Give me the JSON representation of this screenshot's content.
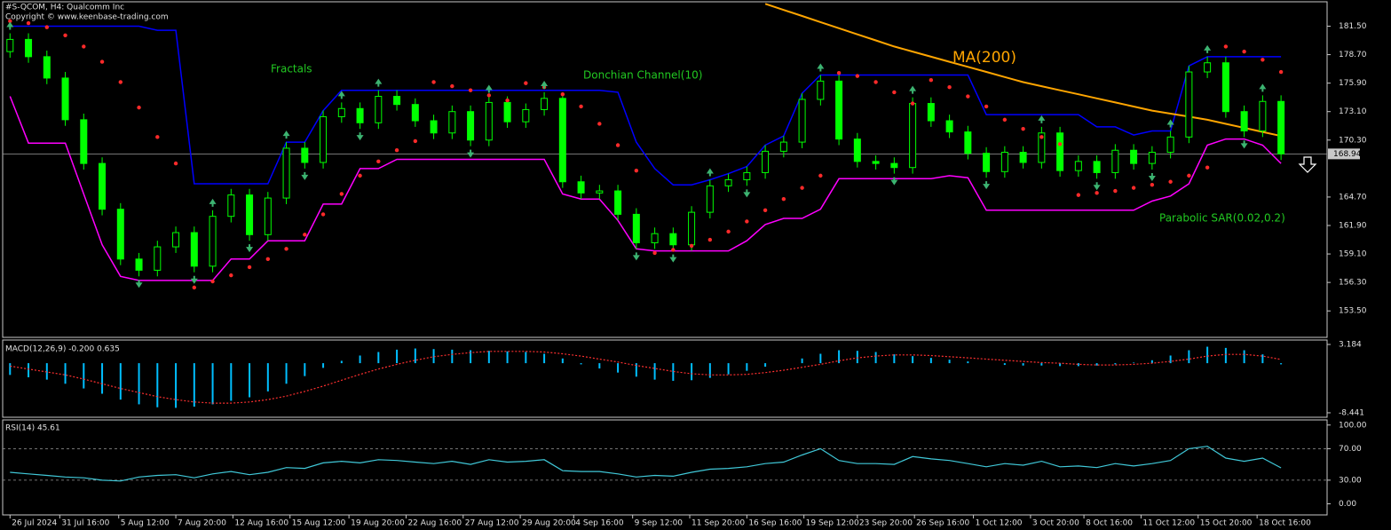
{
  "chart_data": [
    {
      "type": "candlestick",
      "title": "#S-QCOM, H4:  Qualcomm Inc",
      "subtitle": "Copyright © www.keenbase-trading.com",
      "ylim": [
        150.9,
        183.9
      ],
      "yticks": [
        {
          "value": 181.5,
          "label": "181.50"
        },
        {
          "value": 178.7,
          "label": "178.70"
        },
        {
          "value": 175.9,
          "label": "175.90"
        },
        {
          "value": 173.1,
          "label": "173.10"
        },
        {
          "value": 170.3,
          "label": "170.30"
        },
        {
          "value": 164.7,
          "label": "164.70"
        },
        {
          "value": 161.9,
          "label": "161.90"
        },
        {
          "value": 159.1,
          "label": "159.10"
        },
        {
          "value": 156.3,
          "label": "156.30"
        },
        {
          "value": 153.5,
          "label": "153.50"
        }
      ],
      "last_price": 168.94,
      "candle_color": "#00ff00",
      "open": [
        179.0,
        180.2,
        178.5,
        176.4,
        172.3,
        168.0,
        163.5,
        158.6,
        157.5,
        159.8,
        161.2,
        157.9,
        162.8,
        164.9,
        161.0,
        164.6,
        169.5,
        168.1,
        172.6,
        173.4,
        172.0,
        174.6,
        173.8,
        172.2,
        171.0,
        173.1,
        170.3,
        174.0,
        172.1,
        173.3,
        174.4,
        166.2,
        165.1,
        165.3,
        163.0,
        160.2,
        161.1,
        160.0,
        163.2,
        165.8,
        166.4,
        167.1,
        169.2,
        170.1,
        174.3,
        176.1,
        170.4,
        168.2,
        168.0,
        167.6,
        173.9,
        172.2,
        171.1,
        169.0,
        167.2,
        169.1,
        168.1,
        171.0,
        167.3,
        168.2,
        167.1,
        169.3,
        168.0,
        169.1,
        170.6,
        177.0,
        177.9,
        173.1,
        171.2,
        174.1
      ],
      "high": [
        180.8,
        180.8,
        179.1,
        177.0,
        172.9,
        168.6,
        164.1,
        159.2,
        160.4,
        161.8,
        161.8,
        163.4,
        165.5,
        165.5,
        165.2,
        170.1,
        170.1,
        173.2,
        174.0,
        174.0,
        175.2,
        175.2,
        174.4,
        172.8,
        173.7,
        173.7,
        174.6,
        174.6,
        173.9,
        175.0,
        175.0,
        166.8,
        165.9,
        165.9,
        163.6,
        161.7,
        161.7,
        163.8,
        166.4,
        167.0,
        167.7,
        169.8,
        170.7,
        174.9,
        176.7,
        176.7,
        171.0,
        168.8,
        168.6,
        174.5,
        174.5,
        172.8,
        171.7,
        169.6,
        169.7,
        169.7,
        171.6,
        171.6,
        168.8,
        168.8,
        169.9,
        169.9,
        169.7,
        171.2,
        177.6,
        178.5,
        178.5,
        173.7,
        174.7,
        174.7
      ],
      "low": [
        178.4,
        177.9,
        175.8,
        171.7,
        167.4,
        162.9,
        158.0,
        156.9,
        156.9,
        159.2,
        157.3,
        157.3,
        162.2,
        160.4,
        160.4,
        164.0,
        167.5,
        167.5,
        172.0,
        171.4,
        171.4,
        173.2,
        171.6,
        170.4,
        170.4,
        169.7,
        169.7,
        171.5,
        171.5,
        172.7,
        165.6,
        164.5,
        164.5,
        162.4,
        159.6,
        159.6,
        159.4,
        159.4,
        162.6,
        165.2,
        165.8,
        166.5,
        168.6,
        169.5,
        173.7,
        169.8,
        167.6,
        167.4,
        167.0,
        167.0,
        171.6,
        170.5,
        168.4,
        166.6,
        166.6,
        167.5,
        167.5,
        166.7,
        166.7,
        166.5,
        166.5,
        167.4,
        167.4,
        168.5,
        170.0,
        176.4,
        172.5,
        170.6,
        170.6,
        168.34
      ],
      "close": [
        180.2,
        178.5,
        176.4,
        172.3,
        168.0,
        163.5,
        158.6,
        157.5,
        159.8,
        161.2,
        157.9,
        162.8,
        164.9,
        161.0,
        164.6,
        169.5,
        168.1,
        172.6,
        173.4,
        172.0,
        174.6,
        173.8,
        172.2,
        171.0,
        173.1,
        170.3,
        174.0,
        172.1,
        173.3,
        174.4,
        166.2,
        165.1,
        165.3,
        163.0,
        160.2,
        161.1,
        160.0,
        163.2,
        165.8,
        166.4,
        167.1,
        169.2,
        170.1,
        174.3,
        176.1,
        170.4,
        168.2,
        168.0,
        167.6,
        173.9,
        172.2,
        171.1,
        169.0,
        167.2,
        169.1,
        168.1,
        171.0,
        167.3,
        168.2,
        167.1,
        169.3,
        168.0,
        169.1,
        170.6,
        177.0,
        177.9,
        173.1,
        171.2,
        174.1,
        168.94
      ],
      "ma": {
        "name": "MA(200)",
        "color": "#ffa500",
        "values": [
          null,
          null,
          null,
          null,
          null,
          null,
          null,
          null,
          null,
          null,
          null,
          null,
          null,
          null,
          null,
          null,
          null,
          null,
          null,
          null,
          null,
          null,
          null,
          null,
          null,
          null,
          null,
          null,
          null,
          null,
          null,
          null,
          null,
          null,
          null,
          null,
          null,
          null,
          null,
          null,
          null,
          183.7,
          183.1,
          182.5,
          181.9,
          181.3,
          180.7,
          180.1,
          179.5,
          179.0,
          178.5,
          178.0,
          177.5,
          177.0,
          176.5,
          176.0,
          175.6,
          175.2,
          174.8,
          174.4,
          174.0,
          173.6,
          173.2,
          172.9,
          172.6,
          172.3,
          171.9,
          171.5,
          171.1,
          170.7
        ]
      },
      "donchian": {
        "name": "Donchian Channel(10)",
        "upper": {
          "color": "#0000ff",
          "values": [
            181.5,
            181.5,
            181.5,
            181.5,
            181.5,
            181.5,
            181.5,
            181.5,
            181.1,
            181.1,
            166.0,
            166.0,
            166.0,
            166.0,
            166.0,
            170.1,
            170.1,
            173.2,
            175.2,
            175.2,
            175.2,
            175.2,
            175.2,
            175.2,
            175.2,
            175.2,
            175.2,
            175.2,
            175.2,
            175.2,
            175.2,
            175.2,
            175.2,
            175.0,
            170.1,
            167.5,
            165.9,
            165.9,
            166.4,
            167.0,
            167.7,
            169.8,
            170.7,
            174.9,
            176.7,
            176.7,
            176.7,
            176.7,
            176.7,
            176.7,
            176.7,
            176.7,
            176.7,
            172.8,
            172.8,
            172.8,
            172.8,
            172.8,
            172.8,
            171.6,
            171.6,
            170.8,
            171.2,
            171.2,
            177.6,
            178.5,
            178.5,
            178.5,
            178.5,
            178.5
          ]
        },
        "lower": {
          "color": "#ff00ff",
          "values": [
            174.6,
            170.0,
            170.0,
            170.0,
            165.0,
            160.0,
            156.9,
            156.5,
            156.5,
            156.5,
            156.5,
            156.5,
            158.6,
            158.6,
            160.4,
            160.4,
            160.4,
            164.0,
            164.0,
            167.5,
            167.5,
            168.4,
            168.4,
            168.4,
            168.4,
            168.4,
            168.4,
            168.4,
            168.4,
            168.4,
            165.0,
            164.5,
            164.5,
            162.4,
            159.6,
            159.4,
            159.4,
            159.4,
            159.4,
            159.4,
            160.4,
            162.0,
            162.6,
            162.6,
            163.5,
            166.5,
            166.5,
            166.5,
            166.5,
            166.5,
            166.5,
            166.8,
            166.6,
            163.4,
            163.4,
            163.4,
            163.4,
            163.4,
            163.4,
            163.4,
            163.4,
            163.4,
            164.3,
            164.8,
            166.0,
            169.8,
            170.4,
            170.4,
            169.8,
            168.0
          ]
        }
      },
      "sar": {
        "name": "Parabolic SAR(0.02,0.2)",
        "color": "#ff2a2a",
        "values": [
          182.0,
          181.8,
          181.4,
          180.6,
          179.5,
          178.0,
          176.0,
          173.5,
          170.6,
          168.0,
          155.8,
          156.4,
          157.0,
          157.8,
          158.6,
          159.6,
          161.0,
          163.0,
          165.0,
          166.8,
          168.2,
          169.3,
          170.2,
          176.0,
          175.6,
          175.2,
          174.7,
          174.2,
          175.9,
          175.5,
          174.8,
          173.6,
          171.9,
          169.8,
          167.3,
          159.2,
          159.5,
          159.9,
          160.5,
          161.3,
          162.3,
          163.4,
          164.5,
          165.6,
          166.8,
          176.9,
          176.6,
          176.0,
          175.0,
          173.9,
          176.2,
          175.5,
          174.6,
          173.6,
          172.3,
          171.4,
          170.6,
          169.9,
          164.9,
          165.1,
          165.3,
          165.6,
          165.9,
          166.2,
          166.8,
          167.6,
          179.5,
          179.0,
          178.2,
          177.0
        ]
      },
      "fractals": {
        "name": "Fractals",
        "color": "#3cb371",
        "up": [
          180.8,
          null,
          null,
          null,
          null,
          null,
          null,
          null,
          null,
          null,
          null,
          163.4,
          null,
          null,
          null,
          170.1,
          null,
          null,
          174.0,
          null,
          175.2,
          null,
          null,
          null,
          null,
          null,
          174.6,
          null,
          null,
          175.0,
          null,
          null,
          null,
          null,
          null,
          null,
          null,
          null,
          166.4,
          null,
          null,
          null,
          null,
          null,
          176.7,
          null,
          null,
          null,
          null,
          174.5,
          null,
          null,
          null,
          null,
          null,
          null,
          171.6,
          null,
          null,
          null,
          null,
          null,
          null,
          171.2,
          null,
          178.5,
          null,
          null,
          174.7,
          null
        ],
        "down": [
          null,
          null,
          null,
          null,
          null,
          null,
          null,
          156.9,
          null,
          null,
          157.3,
          null,
          null,
          160.4,
          null,
          null,
          167.5,
          null,
          null,
          171.4,
          null,
          null,
          null,
          null,
          null,
          169.7,
          null,
          null,
          null,
          null,
          null,
          null,
          null,
          null,
          159.6,
          null,
          159.4,
          null,
          null,
          null,
          165.8,
          null,
          null,
          null,
          null,
          null,
          null,
          null,
          167.0,
          null,
          null,
          null,
          null,
          166.6,
          null,
          null,
          null,
          null,
          null,
          166.5,
          null,
          null,
          167.4,
          null,
          null,
          null,
          null,
          170.6,
          null,
          null
        ]
      }
    },
    {
      "type": "macd",
      "title": "MACD(12,26,9) -0.200 0.635",
      "ylim": [
        -9.2,
        3.94
      ],
      "yticks": [
        3.184,
        -8.441
      ],
      "histogram": {
        "color": "#00bfff",
        "values": [
          -2.0,
          -2.4,
          -2.8,
          -3.5,
          -4.3,
          -5.2,
          -6.2,
          -7.0,
          -7.5,
          -7.6,
          -7.4,
          -7.0,
          -6.4,
          -5.8,
          -4.8,
          -3.5,
          -2.2,
          -0.8,
          0.4,
          1.3,
          1.9,
          2.3,
          2.5,
          2.4,
          2.3,
          2.2,
          2.1,
          2.0,
          1.9,
          1.6,
          0.8,
          -0.2,
          -0.9,
          -1.6,
          -2.3,
          -2.8,
          -3.0,
          -2.9,
          -2.5,
          -1.9,
          -1.3,
          -0.6,
          0.0,
          0.8,
          1.6,
          2.2,
          2.1,
          1.9,
          1.5,
          1.2,
          0.9,
          0.6,
          0.3,
          0.0,
          -0.3,
          -0.4,
          -0.4,
          -0.5,
          -0.5,
          -0.4,
          -0.2,
          0.1,
          0.5,
          1.3,
          2.2,
          2.8,
          2.6,
          2.2,
          1.5,
          -0.2
        ]
      },
      "signal": {
        "color": "#ff3030",
        "values": [
          -0.5,
          -1.0,
          -1.5,
          -2.0,
          -2.7,
          -3.5,
          -4.3,
          -5.0,
          -5.7,
          -6.2,
          -6.6,
          -6.8,
          -6.8,
          -6.6,
          -6.2,
          -5.6,
          -4.8,
          -3.9,
          -2.9,
          -1.9,
          -1.0,
          -0.2,
          0.5,
          1.1,
          1.5,
          1.8,
          2.0,
          2.0,
          2.0,
          1.9,
          1.6,
          1.2,
          0.7,
          0.2,
          -0.4,
          -0.9,
          -1.4,
          -1.8,
          -2.0,
          -2.0,
          -1.9,
          -1.6,
          -1.2,
          -0.7,
          -0.2,
          0.4,
          0.9,
          1.2,
          1.4,
          1.4,
          1.3,
          1.1,
          0.9,
          0.7,
          0.5,
          0.3,
          0.1,
          0.0,
          -0.2,
          -0.3,
          -0.3,
          -0.2,
          0.0,
          0.3,
          0.7,
          1.2,
          1.5,
          1.5,
          1.2,
          0.635
        ]
      }
    },
    {
      "type": "rsi",
      "title": "RSI(14) 45.61",
      "color": "#40c8d8",
      "ylim": [
        -14.1,
        106.5
      ],
      "yticks": [
        {
          "value": 100,
          "label": "100.00"
        },
        {
          "value": 70,
          "label": "70.00"
        },
        {
          "value": 30,
          "label": "30.00"
        },
        {
          "value": 0,
          "label": "0.00"
        }
      ],
      "levels": [
        70,
        30
      ],
      "values": [
        40,
        38,
        36,
        34,
        33,
        30,
        29,
        34,
        36,
        37,
        33,
        38,
        41,
        37,
        40,
        46,
        45,
        52,
        54,
        52,
        56,
        55,
        53,
        51,
        54,
        50,
        56,
        53,
        54,
        56,
        42,
        41,
        41,
        38,
        34,
        36,
        35,
        40,
        44,
        45,
        47,
        51,
        53,
        62,
        70,
        55,
        51,
        51,
        50,
        60,
        57,
        55,
        51,
        47,
        51,
        49,
        54,
        47,
        48,
        46,
        51,
        48,
        51,
        55,
        70,
        73,
        58,
        54,
        58,
        45.61
      ],
      "xlim": [
        -0.4,
        71.5
      ],
      "xticks": [
        {
          "value": 0,
          "label": "26 Jul 2024"
        },
        {
          "value": 2.7,
          "label": "31 Jul 16:00"
        },
        {
          "value": 5.9,
          "label": "5 Aug 12:00"
        },
        {
          "value": 9.0,
          "label": "7 Aug 20:00"
        },
        {
          "value": 12.1,
          "label": "12 Aug 16:00"
        },
        {
          "value": 15.2,
          "label": "15 Aug 12:00"
        },
        {
          "value": 18.4,
          "label": "19 Aug 20:00"
        },
        {
          "value": 21.5,
          "label": "22 Aug 16:00"
        },
        {
          "value": 24.6,
          "label": "27 Aug 12:00"
        },
        {
          "value": 27.7,
          "label": "29 Aug 20:00"
        },
        {
          "value": 30.6,
          "label": "4 Sep 16:00"
        },
        {
          "value": 33.8,
          "label": "9 Sep 12:00"
        },
        {
          "value": 36.9,
          "label": "11 Sep 20:00"
        },
        {
          "value": 40.0,
          "label": "16 Sep 16:00"
        },
        {
          "value": 43.1,
          "label": "19 Sep 12:00"
        },
        {
          "value": 46.0,
          "label": "23 Sep 20:00"
        },
        {
          "value": 49.1,
          "label": "26 Sep 16:00"
        },
        {
          "value": 52.3,
          "label": "1 Oct 12:00"
        },
        {
          "value": 55.4,
          "label": "3 Oct 20:00"
        },
        {
          "value": 58.3,
          "label": "8 Oct 16:00"
        },
        {
          "value": 61.4,
          "label": "11 Oct 12:00"
        },
        {
          "value": 64.5,
          "label": "15 Oct 20:00"
        },
        {
          "value": 67.7,
          "label": "18 Oct 16:00"
        }
      ]
    }
  ]
}
